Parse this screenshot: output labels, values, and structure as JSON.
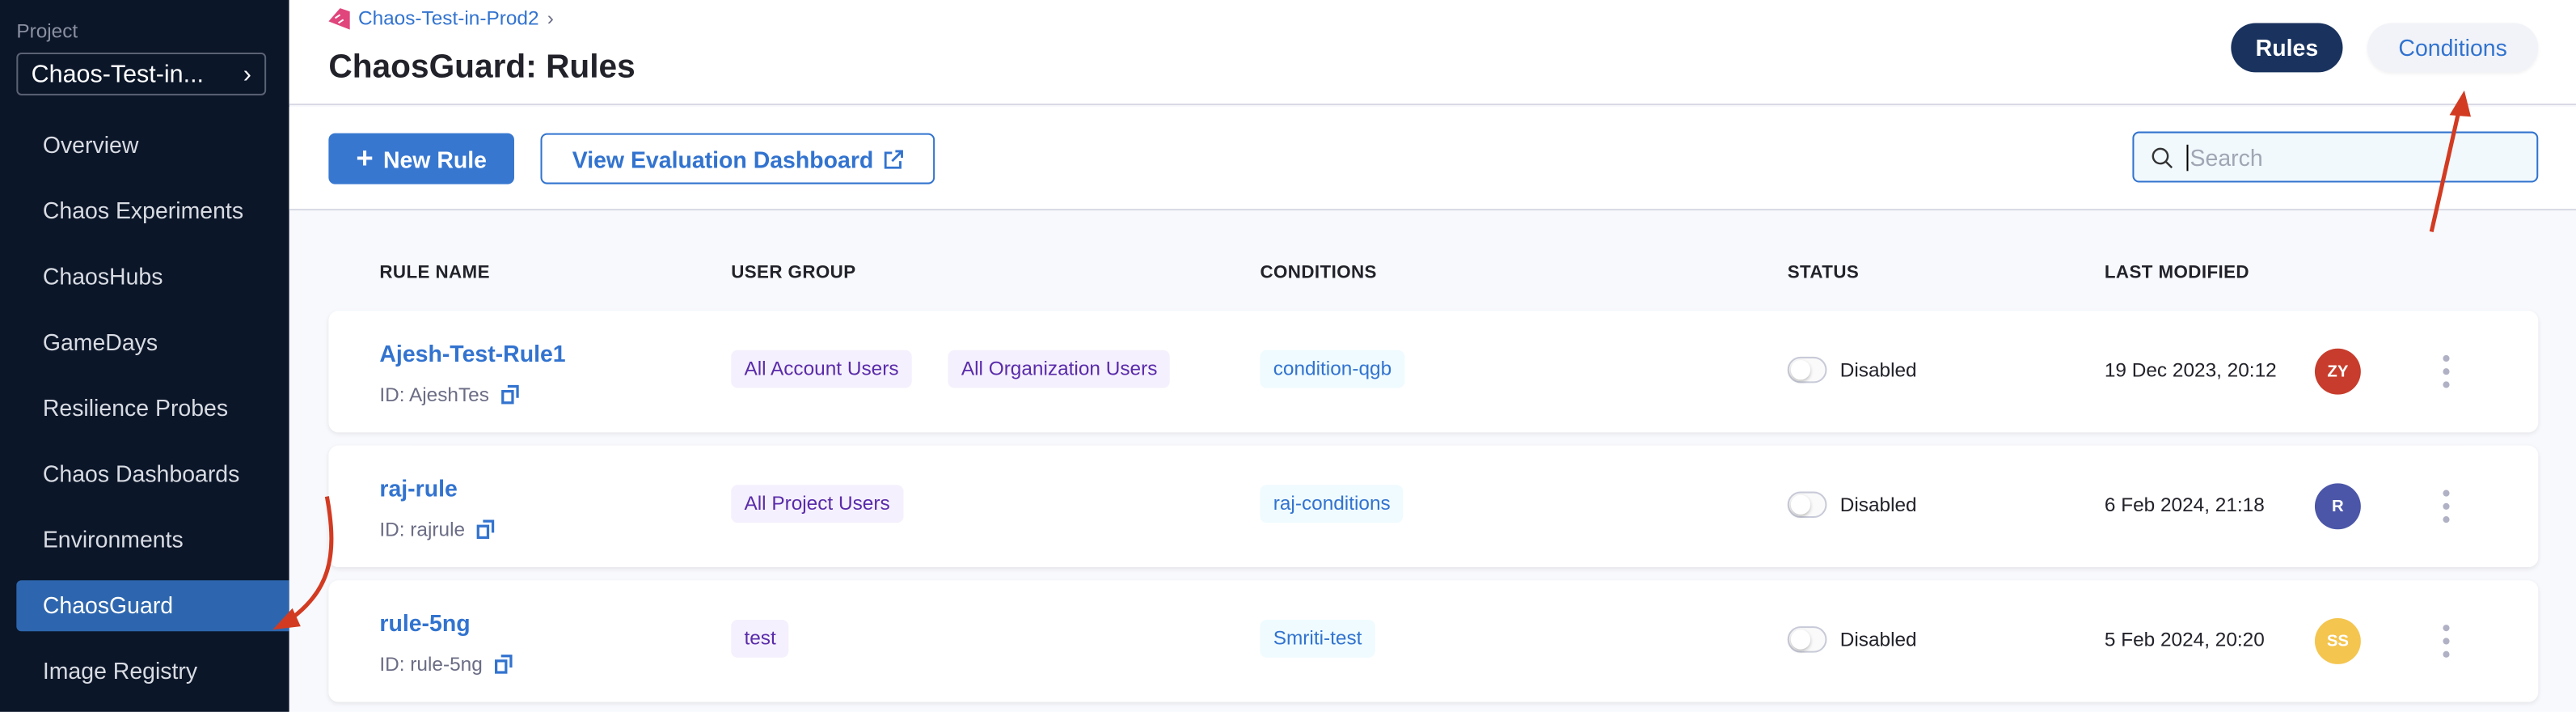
{
  "sidebar": {
    "project_label": "Project",
    "project_name": "Chaos-Test-in...",
    "items": [
      {
        "label": "Overview"
      },
      {
        "label": "Chaos Experiments"
      },
      {
        "label": "ChaosHubs"
      },
      {
        "label": "GameDays"
      },
      {
        "label": "Resilience Probes"
      },
      {
        "label": "Chaos Dashboards"
      },
      {
        "label": "Environments"
      },
      {
        "label": "ChaosGuard",
        "active": true
      },
      {
        "label": "Image Registry"
      }
    ]
  },
  "header": {
    "breadcrumb": "Chaos-Test-in-Prod2",
    "title": "ChaosGuard: Rules",
    "tabs": [
      {
        "label": "Rules",
        "active": true
      },
      {
        "label": "Conditions"
      }
    ]
  },
  "toolbar": {
    "new_rule": "New Rule",
    "view_dashboard": "View Evaluation Dashboard",
    "search_placeholder": "Search"
  },
  "table": {
    "columns": [
      "RULE NAME",
      "USER GROUP",
      "CONDITIONS",
      "STATUS",
      "LAST MODIFIED"
    ],
    "rows": [
      {
        "name": "Ajesh-Test-Rule1",
        "id": "ID: AjeshTes",
        "user_groups": [
          "All Account Users",
          "All Organization Users"
        ],
        "condition": "condition-qgb",
        "status": "Disabled",
        "modified": "19 Dec 2023, 20:12",
        "avatar": "ZY",
        "avatar_color": "#c73c2c"
      },
      {
        "name": "raj-rule",
        "id": "ID: rajrule",
        "user_groups": [
          "All Project Users"
        ],
        "condition": "raj-conditions",
        "status": "Disabled",
        "modified": "6 Feb 2024, 21:18",
        "avatar": "R",
        "avatar_color": "#4b56a8"
      },
      {
        "name": "rule-5ng",
        "id": "ID: rule-5ng",
        "user_groups": [
          "test"
        ],
        "condition": "Smriti-test",
        "status": "Disabled",
        "modified": "5 Feb 2024, 20:20",
        "avatar": "SS",
        "avatar_color": "#f4c54f"
      }
    ]
  },
  "colors": {
    "accent": "#3273cf",
    "sidebar": "#0b1629",
    "active_nav": "#2d66ae",
    "annotation_arrow": "#d23b22"
  }
}
